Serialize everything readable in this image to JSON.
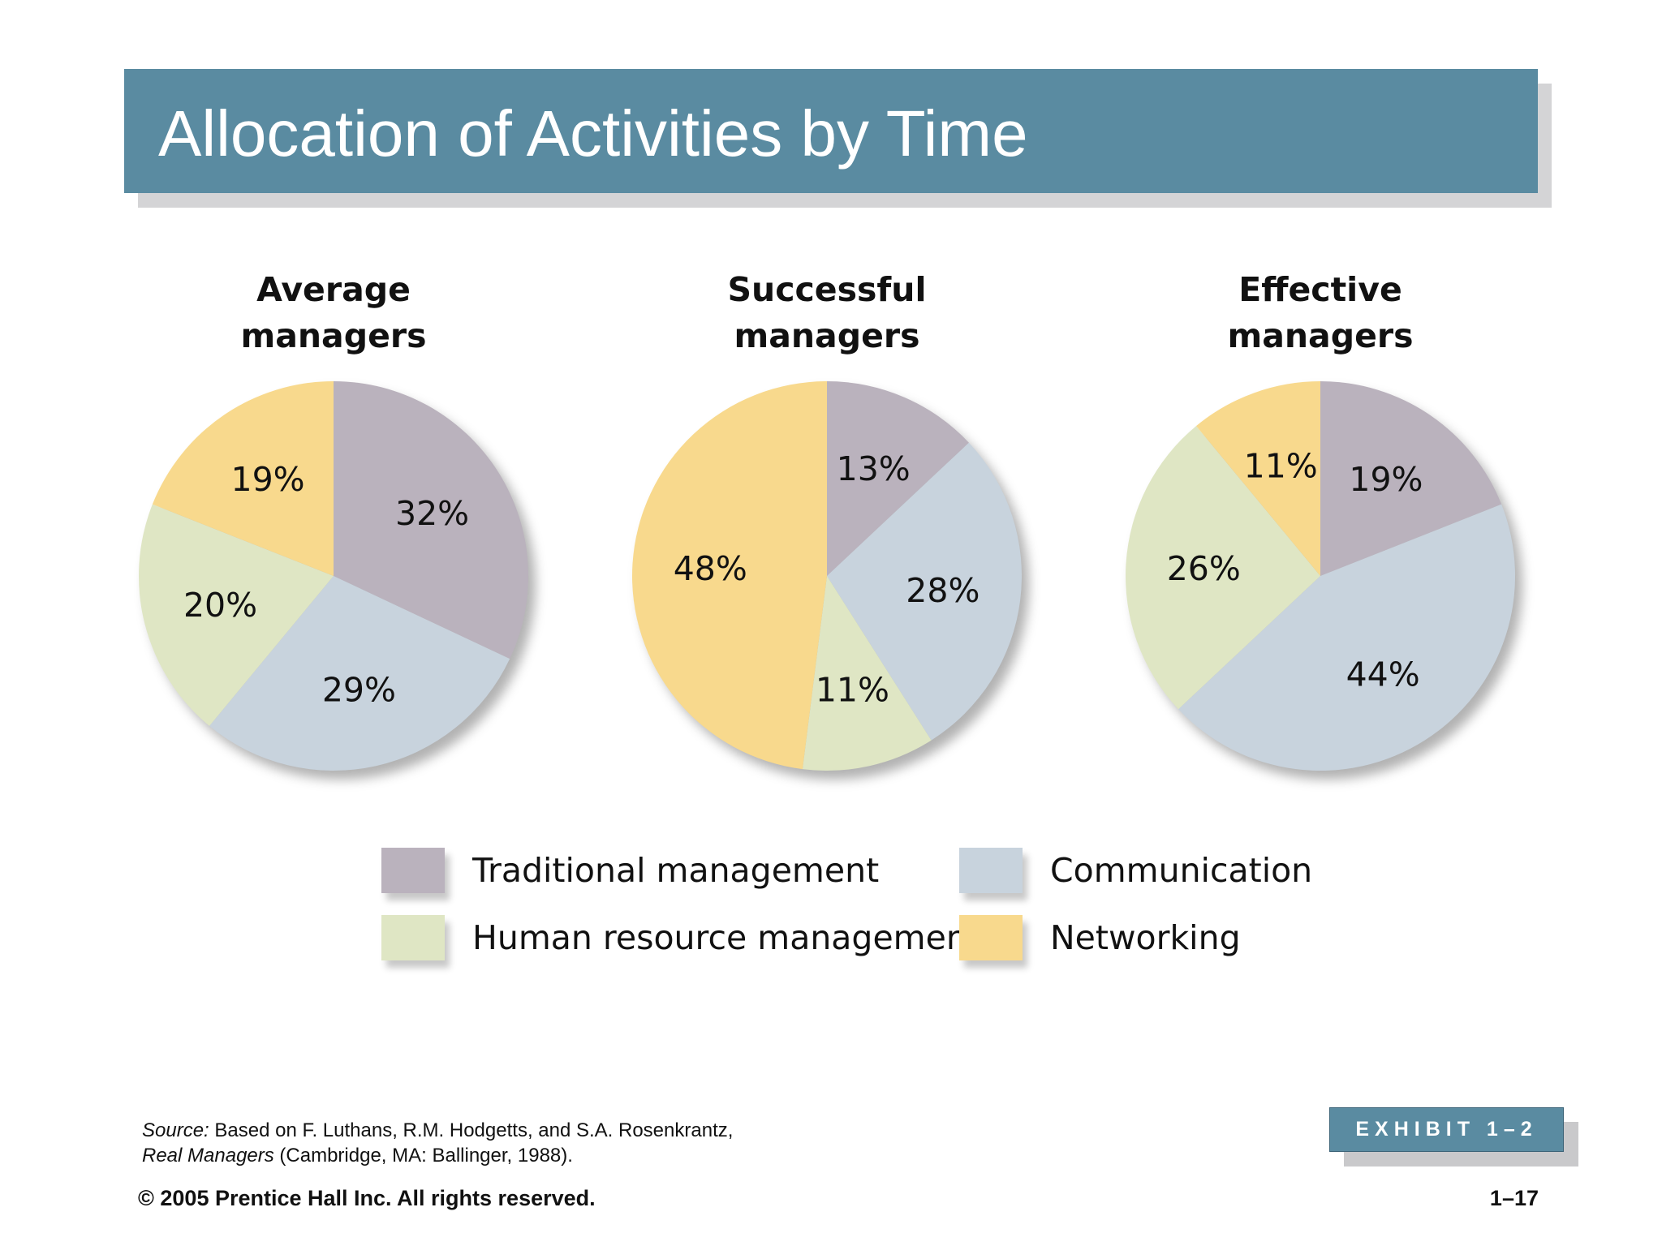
{
  "slide": {
    "title": "Allocation of Activities by Time",
    "source_label": "Source:",
    "source_line1": "Based on F. Luthans, R.M. Hodgetts, and S.A. Rosenkrantz,",
    "source_book": "Real Managers",
    "source_line2_rest": "(Cambridge, MA: Ballinger, 1988).",
    "exhibit": "EXHIBIT 1–2",
    "copyright": "© 2005 Prentice Hall Inc. All rights reserved.",
    "page_number": "1–17"
  },
  "colors": {
    "title_bar": "#5a8ba1",
    "traditional": "#bab2bd",
    "communication": "#c8d3dd",
    "human_resource": "#dfe6c4",
    "networking": "#f8d98d"
  },
  "chart_data": [
    {
      "type": "pie",
      "title_lines": [
        "Average",
        "managers"
      ],
      "slices": [
        {
          "category": "Traditional management",
          "value": 32,
          "label": "32%"
        },
        {
          "category": "Communication",
          "value": 29,
          "label": "29%"
        },
        {
          "category": "Human resource management",
          "value": 20,
          "label": "20%"
        },
        {
          "category": "Networking",
          "value": 19,
          "label": "19%"
        }
      ]
    },
    {
      "type": "pie",
      "title_lines": [
        "Successful",
        "managers"
      ],
      "slices": [
        {
          "category": "Traditional management",
          "value": 13,
          "label": "13%"
        },
        {
          "category": "Communication",
          "value": 28,
          "label": "28%"
        },
        {
          "category": "Human resource management",
          "value": 11,
          "label": "11%"
        },
        {
          "category": "Networking",
          "value": 48,
          "label": "48%"
        }
      ]
    },
    {
      "type": "pie",
      "title_lines": [
        "Effective",
        "managers"
      ],
      "slices": [
        {
          "category": "Traditional management",
          "value": 19,
          "label": "19%"
        },
        {
          "category": "Communication",
          "value": 44,
          "label": "44%"
        },
        {
          "category": "Human resource management",
          "value": 26,
          "label": "26%"
        },
        {
          "category": "Networking",
          "value": 11,
          "label": "11%"
        }
      ]
    }
  ],
  "legend": [
    {
      "label": "Traditional management",
      "color": "#bab2bd"
    },
    {
      "label": "Communication",
      "color": "#c8d3dd"
    },
    {
      "label": "Human resource management",
      "color": "#dfe6c4"
    },
    {
      "label": "Networking",
      "color": "#f8d98d"
    }
  ]
}
